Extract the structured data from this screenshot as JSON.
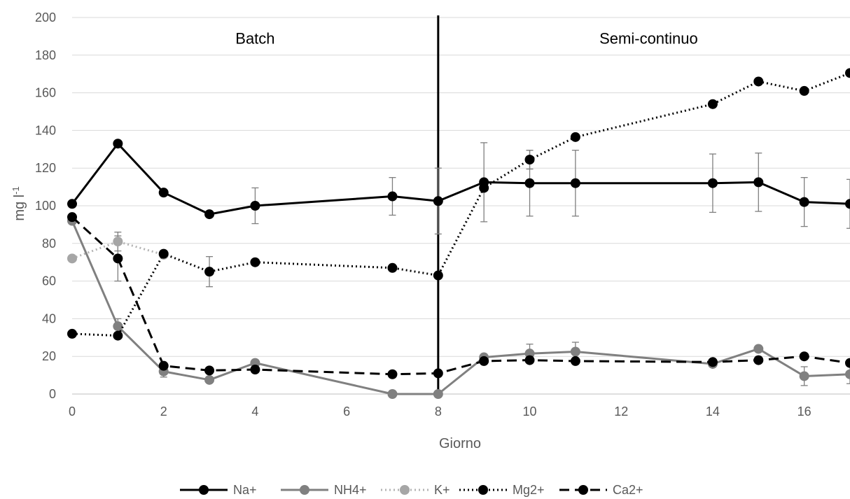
{
  "chart_data": {
    "type": "line",
    "xlabel": "Giorno",
    "ylabel": "mg l",
    "ylabel_sup": "-1",
    "xlim": [
      0,
      17
    ],
    "ylim": [
      0,
      200
    ],
    "xticks": [
      "0",
      "2",
      "4",
      "6",
      "8",
      "10",
      "12",
      "14",
      "16"
    ],
    "yticks": [
      "0",
      "20",
      "40",
      "60",
      "80",
      "100",
      "120",
      "140",
      "160",
      "180",
      "200"
    ],
    "grid": true,
    "legend_position": "bottom",
    "phase_divider_x": 8,
    "annotations": [
      {
        "text": "Batch",
        "x": 4,
        "y": 186
      },
      {
        "text": "Semi-continuo",
        "x": 12.6,
        "y": 186
      }
    ],
    "series": [
      {
        "name": "Na+",
        "color": "#000000",
        "marker_color": "#000000",
        "dash": "solid",
        "x": [
          0,
          1,
          2,
          3,
          4,
          7,
          8,
          9,
          10,
          11,
          14,
          15,
          16,
          17
        ],
        "values": [
          101,
          133,
          107,
          95.5,
          100,
          105,
          102.5,
          112.5,
          112,
          112,
          112,
          112.5,
          102,
          101
        ],
        "errors": [
          0,
          0,
          0,
          0,
          9.5,
          10,
          17.5,
          21,
          17.5,
          17.5,
          15.5,
          15.5,
          13,
          13
        ]
      },
      {
        "name": "NH4+",
        "color": "#808080",
        "marker_color": "#808080",
        "dash": "solid",
        "x": [
          0,
          1,
          2,
          3,
          4,
          7,
          8,
          9,
          10,
          11,
          14,
          15,
          16,
          17
        ],
        "values": [
          92,
          36,
          12,
          7.5,
          16.5,
          0,
          0,
          19.5,
          21.5,
          22.5,
          16,
          24,
          9.5,
          10.5
        ],
        "errors": [
          0,
          4,
          3,
          0,
          0,
          0,
          0,
          0,
          5,
          5,
          0,
          0,
          5,
          5
        ]
      },
      {
        "name": "K+",
        "color": "#b3b3b3",
        "marker_color": "#a6a6a6",
        "dash": "dot",
        "x": [
          0,
          1,
          2
        ],
        "values": [
          72,
          81,
          74
        ],
        "errors": [
          0,
          5,
          0
        ]
      },
      {
        "name": "Mg2+",
        "color": "#000000",
        "marker_color": "#000000",
        "dash": "dot",
        "x": [
          0,
          1,
          2,
          3,
          4,
          7,
          8,
          9,
          10,
          11,
          14,
          15,
          16,
          17
        ],
        "values": [
          32,
          31,
          74.5,
          65,
          70,
          67,
          63,
          109.5,
          124.5,
          136.5,
          154,
          166,
          161,
          170.5
        ],
        "errors": [
          0,
          0,
          0,
          8,
          0,
          0,
          0,
          0,
          5,
          0,
          0,
          0,
          0,
          0
        ]
      },
      {
        "name": "Ca2+",
        "color": "#000000",
        "marker_color": "#000000",
        "dash": "dash",
        "x": [
          0,
          1,
          2,
          3,
          4,
          7,
          8,
          9,
          10,
          11,
          14,
          15,
          16,
          17
        ],
        "values": [
          94,
          72,
          15,
          12.5,
          13,
          10.5,
          11,
          17.5,
          18,
          17.5,
          17,
          18,
          20,
          16.5
        ],
        "errors": [
          0,
          12,
          0,
          0,
          0,
          0,
          0,
          0,
          0,
          0,
          0,
          0,
          0,
          0
        ]
      }
    ]
  }
}
